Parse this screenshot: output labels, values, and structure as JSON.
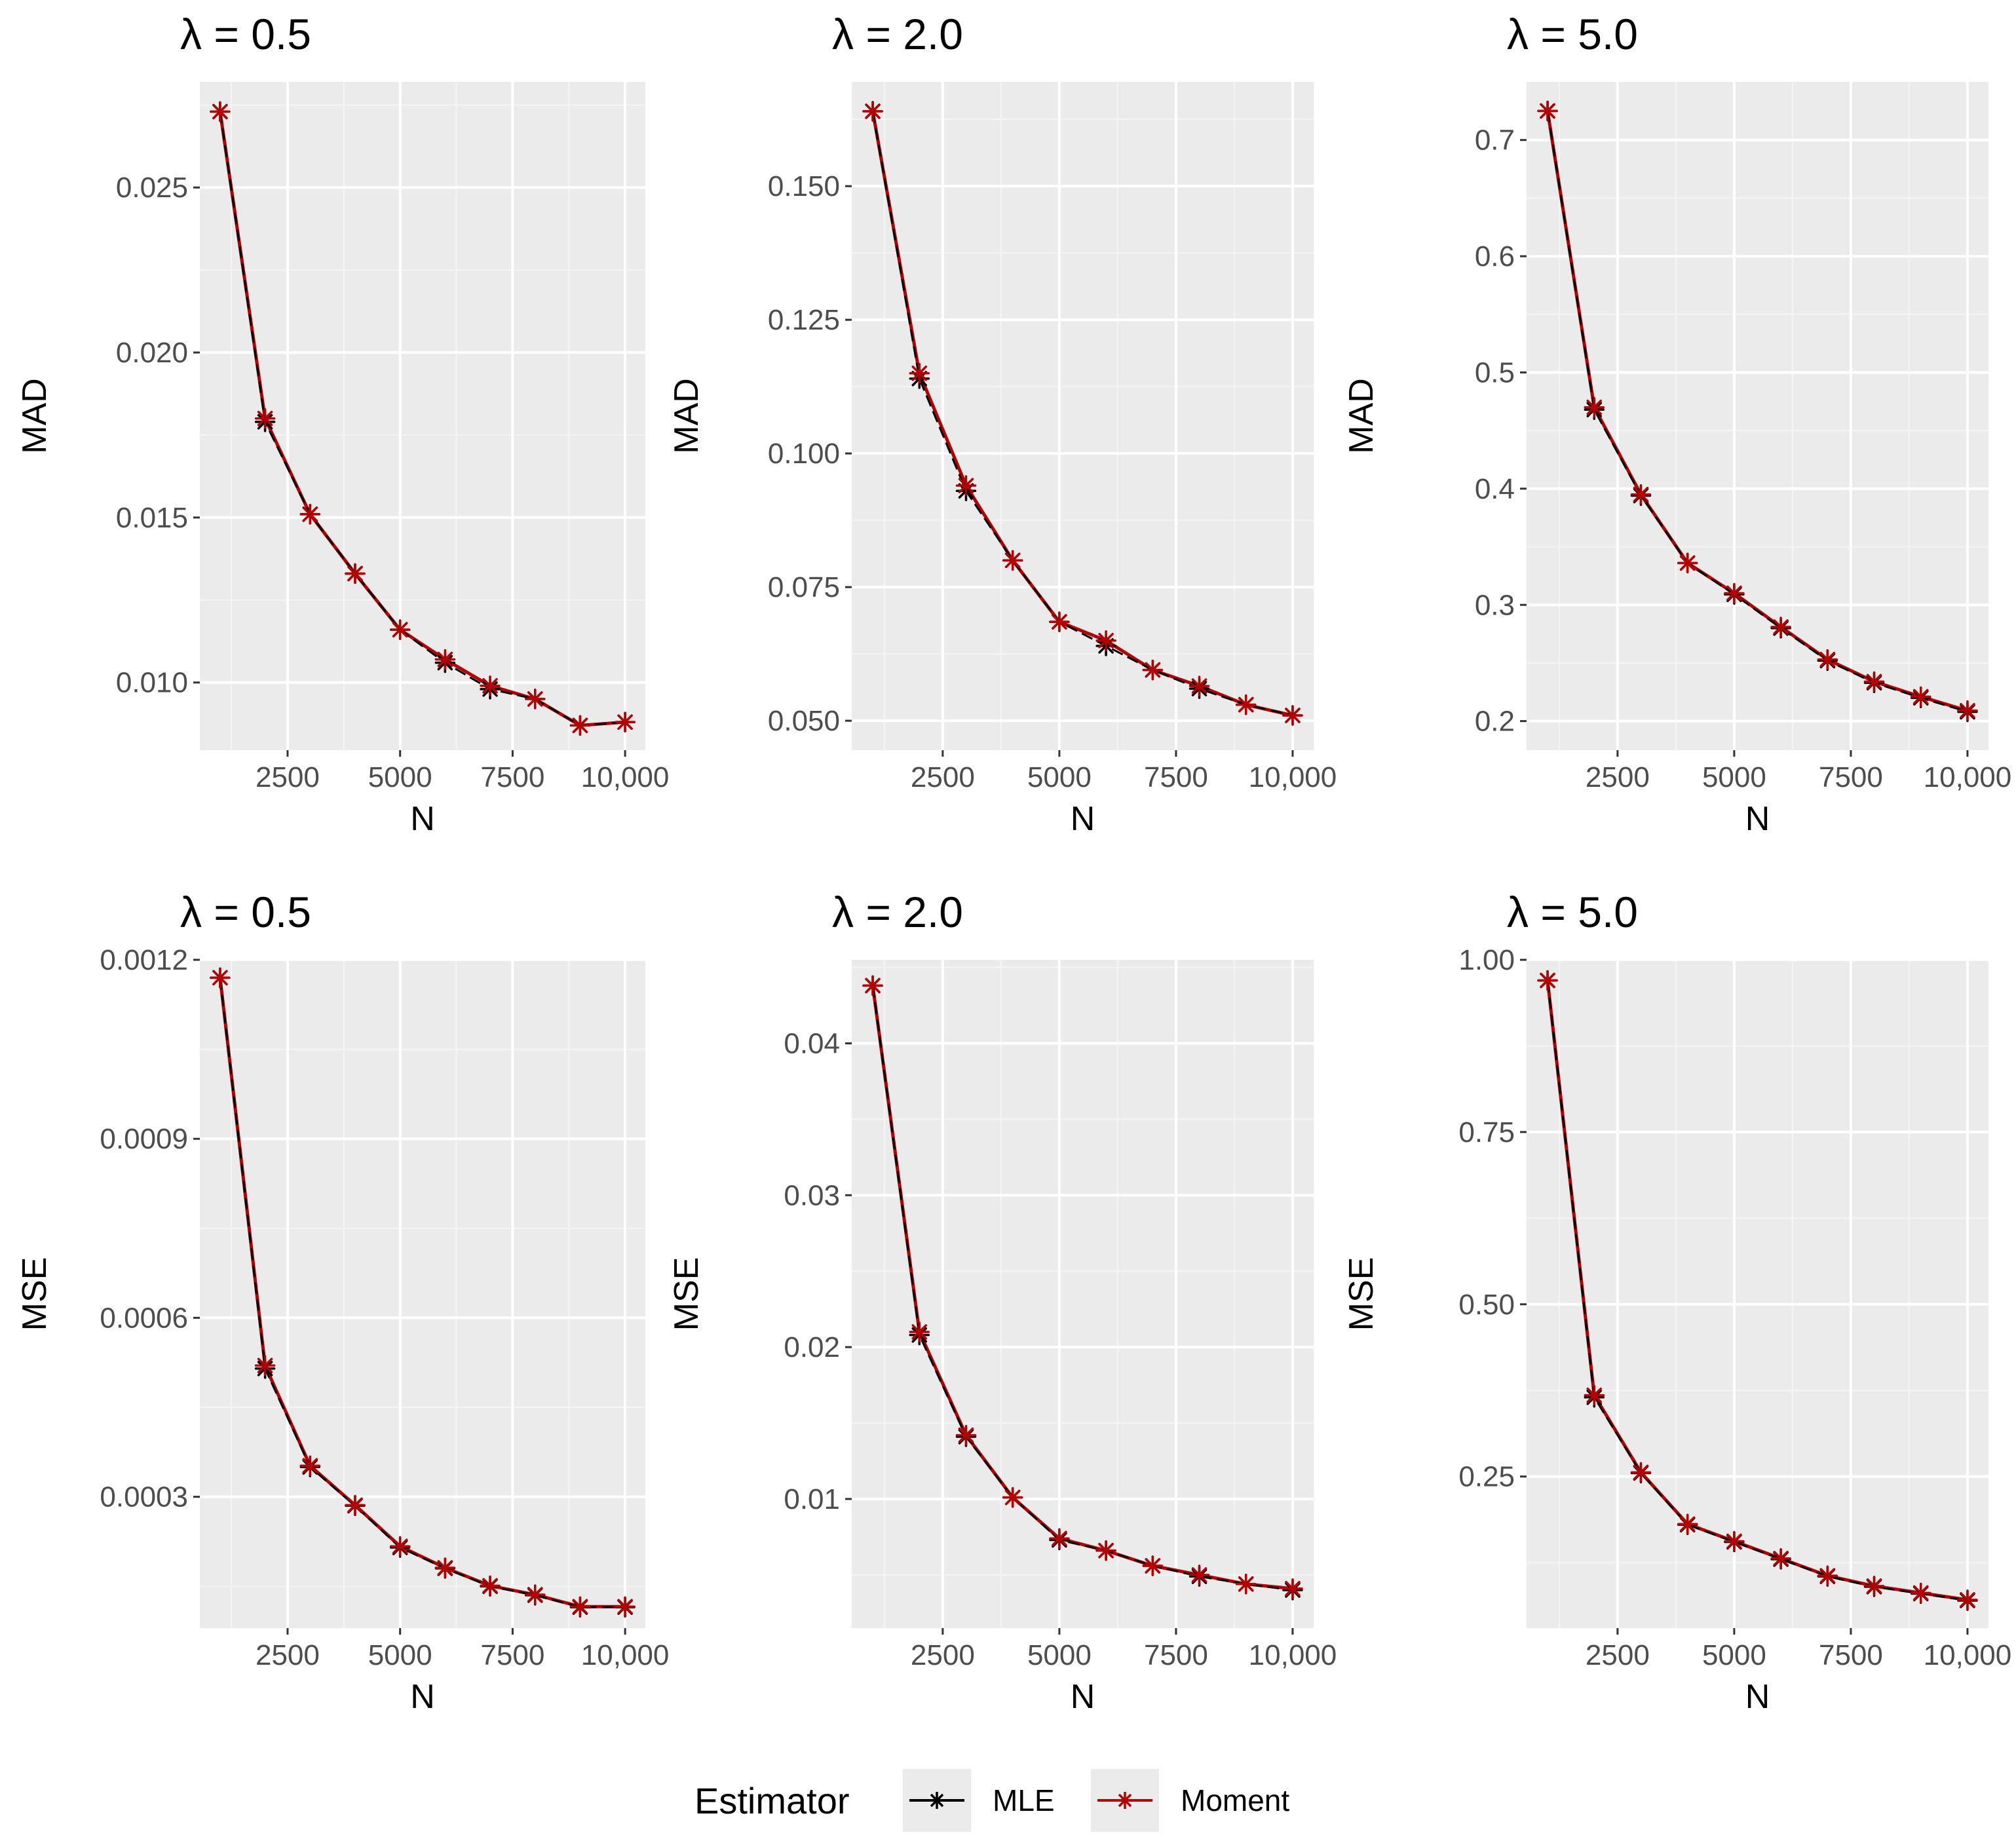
{
  "colors": {
    "panel_background": "#ebebeb",
    "grid_major": "#ffffff",
    "grid_minor": "#f5f5f5",
    "tick_text": "#4d4d4d",
    "mle": "#000000",
    "moment": "#b30000"
  },
  "legend": {
    "title": "Estimator",
    "entries": [
      "MLE",
      "Moment"
    ]
  },
  "chart_data": [
    {
      "type": "line",
      "title": "λ = 0.5",
      "xlabel": "N",
      "ylabel": "MAD",
      "x": [
        1000,
        2000,
        3000,
        4000,
        5000,
        6000,
        7000,
        8000,
        9000,
        10000
      ],
      "xlim": [
        550,
        10450
      ],
      "ylim": [
        0.00795,
        0.0282
      ],
      "xticks": [
        2500,
        5000,
        7500,
        10000
      ],
      "xtick_labels": [
        "2500",
        "5000",
        "7500",
        "10,000"
      ],
      "yticks": [
        0.01,
        0.015,
        0.02,
        0.025
      ],
      "ytick_labels": [
        "0.010",
        "0.015",
        "0.020",
        "0.025"
      ],
      "series": [
        {
          "name": "MLE",
          "values": [
            0.0273,
            0.0179,
            0.0151,
            0.0133,
            0.0116,
            0.0106,
            0.0098,
            0.0095,
            0.0087,
            0.0088
          ]
        },
        {
          "name": "Moment",
          "values": [
            0.0273,
            0.018,
            0.0151,
            0.0133,
            0.0116,
            0.0107,
            0.0099,
            0.0095,
            0.0087,
            0.0088
          ]
        }
      ]
    },
    {
      "type": "line",
      "title": "λ = 2.0",
      "xlabel": "N",
      "ylabel": "MAD",
      "x": [
        1000,
        2000,
        3000,
        4000,
        5000,
        6000,
        7000,
        8000,
        9000,
        10000
      ],
      "xlim": [
        550,
        10450
      ],
      "ylim": [
        0.0445,
        0.1695
      ],
      "xticks": [
        2500,
        5000,
        7500,
        10000
      ],
      "xtick_labels": [
        "2500",
        "5000",
        "7500",
        "10,000"
      ],
      "yticks": [
        0.05,
        0.075,
        0.1,
        0.125,
        0.15
      ],
      "ytick_labels": [
        "0.050",
        "0.075",
        "0.100",
        "0.125",
        "0.150"
      ],
      "series": [
        {
          "name": "MLE",
          "values": [
            0.164,
            0.114,
            0.093,
            0.08,
            0.0685,
            0.064,
            0.0595,
            0.056,
            0.053,
            0.051
          ]
        },
        {
          "name": "Moment",
          "values": [
            0.164,
            0.115,
            0.094,
            0.08,
            0.0685,
            0.065,
            0.0595,
            0.0565,
            0.053,
            0.051
          ]
        }
      ]
    },
    {
      "type": "line",
      "title": "λ = 5.0",
      "xlabel": "N",
      "ylabel": "MAD",
      "x": [
        1000,
        2000,
        3000,
        4000,
        5000,
        6000,
        7000,
        8000,
        9000,
        10000
      ],
      "xlim": [
        550,
        10450
      ],
      "ylim": [
        0.175,
        0.75
      ],
      "xticks": [
        2500,
        5000,
        7500,
        10000
      ],
      "xtick_labels": [
        "2500",
        "5000",
        "7500",
        "10,000"
      ],
      "yticks": [
        0.2,
        0.3,
        0.4,
        0.5,
        0.6,
        0.7
      ],
      "ytick_labels": [
        "0.2",
        "0.3",
        "0.4",
        "0.5",
        "0.6",
        "0.7"
      ],
      "series": [
        {
          "name": "MLE",
          "values": [
            0.725,
            0.468,
            0.394,
            0.336,
            0.309,
            0.28,
            0.252,
            0.233,
            0.22,
            0.208
          ]
        },
        {
          "name": "Moment",
          "values": [
            0.725,
            0.47,
            0.395,
            0.336,
            0.31,
            0.281,
            0.253,
            0.234,
            0.221,
            0.209
          ]
        }
      ]
    },
    {
      "type": "line",
      "title": "λ = 0.5",
      "xlabel": "N",
      "ylabel": "MSE",
      "x": [
        1000,
        2000,
        3000,
        4000,
        5000,
        6000,
        7000,
        8000,
        9000,
        10000
      ],
      "xlim": [
        550,
        10450
      ],
      "ylim": [
        8e-05,
        0.0012
      ],
      "xticks": [
        2500,
        5000,
        7500,
        10000
      ],
      "xtick_labels": [
        "2500",
        "5000",
        "7500",
        "10,000"
      ],
      "yticks": [
        0.0003,
        0.0006,
        0.0009,
        0.0012
      ],
      "ytick_labels": [
        "0.0003",
        "0.0006",
        "0.0009",
        "0.0012"
      ],
      "series": [
        {
          "name": "MLE",
          "values": [
            0.00117,
            0.000515,
            0.00035,
            0.000285,
            0.000215,
            0.00018,
            0.00015,
            0.000135,
            0.000115,
            0.000115
          ]
        },
        {
          "name": "Moment",
          "values": [
            0.00117,
            0.00052,
            0.000352,
            0.000286,
            0.000217,
            0.000181,
            0.000151,
            0.000136,
            0.000116,
            0.000116
          ]
        }
      ]
    },
    {
      "type": "line",
      "title": "λ = 2.0",
      "xlabel": "N",
      "ylabel": "MSE",
      "x": [
        1000,
        2000,
        3000,
        4000,
        5000,
        6000,
        7000,
        8000,
        9000,
        10000
      ],
      "xlim": [
        550,
        10450
      ],
      "ylim": [
        0.0015,
        0.0455
      ],
      "xticks": [
        2500,
        5000,
        7500,
        10000
      ],
      "xtick_labels": [
        "2500",
        "5000",
        "7500",
        "10,000"
      ],
      "yticks": [
        0.01,
        0.02,
        0.03,
        0.04
      ],
      "ytick_labels": [
        "0.01",
        "0.02",
        "0.03",
        "0.04"
      ],
      "series": [
        {
          "name": "MLE",
          "values": [
            0.0438,
            0.0208,
            0.0141,
            0.0101,
            0.0073,
            0.0066,
            0.0056,
            0.0049,
            0.0044,
            0.004
          ]
        },
        {
          "name": "Moment",
          "values": [
            0.0438,
            0.021,
            0.0142,
            0.0101,
            0.0074,
            0.0066,
            0.0056,
            0.005,
            0.0044,
            0.0041
          ]
        }
      ]
    },
    {
      "type": "line",
      "title": "λ = 5.0",
      "xlabel": "N",
      "ylabel": "MSE",
      "x": [
        1000,
        2000,
        3000,
        4000,
        5000,
        6000,
        7000,
        8000,
        9000,
        10000
      ],
      "xlim": [
        550,
        10450
      ],
      "ylim": [
        0.03,
        1.0
      ],
      "xticks": [
        2500,
        5000,
        7500,
        10000
      ],
      "xtick_labels": [
        "2500",
        "5000",
        "7500",
        "10,000"
      ],
      "yticks": [
        0.25,
        0.5,
        0.75,
        1.0
      ],
      "ytick_labels": [
        "0.25",
        "0.50",
        "0.75",
        "1.00"
      ],
      "series": [
        {
          "name": "MLE",
          "values": [
            0.97,
            0.365,
            0.255,
            0.18,
            0.155,
            0.13,
            0.105,
            0.09,
            0.08,
            0.07
          ]
        },
        {
          "name": "Moment",
          "values": [
            0.97,
            0.368,
            0.256,
            0.181,
            0.156,
            0.131,
            0.106,
            0.091,
            0.081,
            0.071
          ]
        }
      ]
    }
  ]
}
